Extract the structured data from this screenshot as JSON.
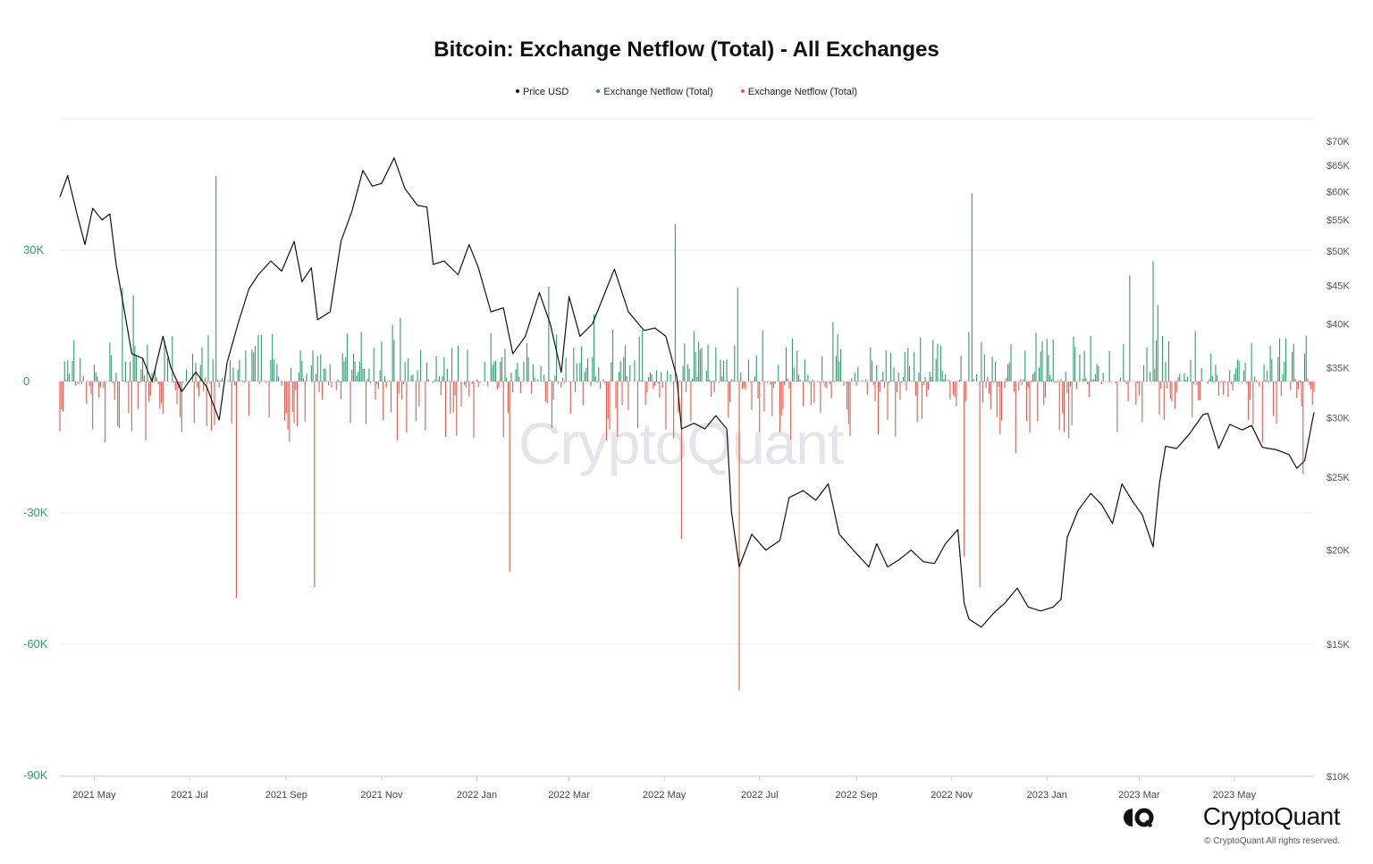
{
  "chart_data": {
    "type": "bar+line",
    "title": "Bitcoin: Exchange Netflow (Total) - All Exchanges",
    "legend": [
      {
        "label": "Price USD",
        "color": "#111111"
      },
      {
        "label": "Exchange Netflow (Total)",
        "color": "#2e9d6b"
      },
      {
        "label": "Exchange Netflow (Total)",
        "color": "#e8574a"
      }
    ],
    "x_ticks": [
      "2021 May",
      "2021 Jul",
      "2021 Sep",
      "2021 Nov",
      "2022 Jan",
      "2022 Mar",
      "2022 May",
      "2022 Jul",
      "2022 Sep",
      "2022 Nov",
      "2023 Jan",
      "2023 Mar",
      "2023 May"
    ],
    "x_range": [
      "2021-04-09",
      "2023-06-21"
    ],
    "left_axis": {
      "ticks": [
        "30K",
        "0",
        "-30K",
        "-60K",
        "-90K"
      ],
      "values": [
        30000,
        0,
        -30000,
        -60000,
        -90000
      ],
      "range": [
        -90000,
        60000
      ]
    },
    "right_axis": {
      "scale": "log",
      "ticks": [
        "$70K",
        "$65K",
        "$60K",
        "$55K",
        "$50K",
        "$45K",
        "$40K",
        "$35K",
        "$30K",
        "$25K",
        "$20K",
        "$15K",
        "$10K"
      ],
      "values": [
        70000,
        65000,
        60000,
        55000,
        50000,
        45000,
        40000,
        35000,
        30000,
        25000,
        20000,
        15000,
        10000
      ],
      "range": [
        10000,
        70000
      ]
    },
    "grid": true,
    "legend_position": "top-center",
    "price_series": {
      "name": "Price USD",
      "dates": [
        "2021-04-09",
        "2021-04-14",
        "2021-04-20",
        "2021-04-25",
        "2021-04-30",
        "2021-05-06",
        "2021-05-11",
        "2021-05-15",
        "2021-05-20",
        "2021-05-25",
        "2021-06-01",
        "2021-06-07",
        "2021-06-14",
        "2021-06-19",
        "2021-06-26",
        "2021-07-05",
        "2021-07-12",
        "2021-07-20",
        "2021-07-25",
        "2021-08-01",
        "2021-08-08",
        "2021-08-14",
        "2021-08-22",
        "2021-08-29",
        "2021-09-06",
        "2021-09-11",
        "2021-09-17",
        "2021-09-21",
        "2021-09-29",
        "2021-10-06",
        "2021-10-13",
        "2021-10-20",
        "2021-10-26",
        "2021-11-01",
        "2021-11-09",
        "2021-11-16",
        "2021-11-24",
        "2021-11-30",
        "2021-12-04",
        "2021-12-11",
        "2021-12-20",
        "2021-12-27",
        "2022-01-02",
        "2022-01-10",
        "2022-01-18",
        "2022-01-24",
        "2022-02-01",
        "2022-02-10",
        "2022-02-17",
        "2022-02-24",
        "2022-03-01",
        "2022-03-08",
        "2022-03-16",
        "2022-03-24",
        "2022-03-30",
        "2022-04-08",
        "2022-04-18",
        "2022-04-25",
        "2022-05-02",
        "2022-05-09",
        "2022-05-12",
        "2022-05-20",
        "2022-05-27",
        "2022-06-03",
        "2022-06-10",
        "2022-06-13",
        "2022-06-18",
        "2022-06-26",
        "2022-07-05",
        "2022-07-14",
        "2022-07-20",
        "2022-07-29",
        "2022-08-06",
        "2022-08-14",
        "2022-08-21",
        "2022-08-30",
        "2022-09-09",
        "2022-09-14",
        "2022-09-21",
        "2022-09-28",
        "2022-10-06",
        "2022-10-14",
        "2022-10-21",
        "2022-10-28",
        "2022-11-05",
        "2022-11-09",
        "2022-11-12",
        "2022-11-20",
        "2022-11-28",
        "2022-12-05",
        "2022-12-13",
        "2022-12-20",
        "2022-12-28",
        "2023-01-05",
        "2023-01-10",
        "2023-01-14",
        "2023-01-21",
        "2023-01-29",
        "2023-02-05",
        "2023-02-12",
        "2023-02-18",
        "2023-02-25",
        "2023-03-03",
        "2023-03-10",
        "2023-03-14",
        "2023-03-18",
        "2023-03-25",
        "2023-04-02",
        "2023-04-11",
        "2023-04-14",
        "2023-04-21",
        "2023-04-28",
        "2023-05-06",
        "2023-05-12",
        "2023-05-19",
        "2023-05-28",
        "2023-06-05",
        "2023-06-10",
        "2023-06-15",
        "2023-06-21"
      ],
      "values": [
        59000,
        63000,
        56000,
        51000,
        57000,
        55000,
        56000,
        48000,
        42000,
        36500,
        36000,
        33500,
        38500,
        35000,
        32500,
        34500,
        33000,
        29800,
        35500,
        40000,
        44500,
        46500,
        48500,
        47000,
        51500,
        45500,
        47500,
        40500,
        41500,
        51500,
        56500,
        64000,
        61000,
        61500,
        66500,
        60500,
        57500,
        57200,
        48000,
        48500,
        46500,
        51000,
        47500,
        41500,
        42000,
        36500,
        38500,
        44000,
        40000,
        34500,
        43500,
        38500,
        40000,
        44000,
        47300,
        41500,
        39200,
        39500,
        38500,
        34000,
        29000,
        29500,
        29000,
        30200,
        29000,
        22500,
        19000,
        21000,
        20000,
        20600,
        23500,
        24000,
        23300,
        24500,
        21000,
        20000,
        19000,
        20400,
        19000,
        19400,
        20000,
        19300,
        19200,
        20400,
        21300,
        17000,
        16200,
        15800,
        16500,
        17000,
        17800,
        16800,
        16600,
        16800,
        17200,
        20800,
        22600,
        23800,
        23000,
        21700,
        24500,
        23200,
        22300,
        20200,
        24500,
        27500,
        27300,
        28500,
        30300,
        30400,
        27300,
        29400,
        28900,
        29300,
        27400,
        27200,
        26800,
        25700,
        26300,
        30500
      ]
    },
    "netflow_series": {
      "name": "Exchange Netflow (Total)",
      "daily": true,
      "inflow_color": "#2e9d6b",
      "outflow_color": "#e8574a",
      "notable_spikes": [
        {
          "date": "2021-07-18",
          "value": 47000
        },
        {
          "date": "2021-07-31",
          "value": -49500
        },
        {
          "date": "2021-09-19",
          "value": -47000
        },
        {
          "date": "2022-01-22",
          "value": -43500
        },
        {
          "date": "2022-05-08",
          "value": 36000
        },
        {
          "date": "2022-05-12",
          "value": -36000
        },
        {
          "date": "2022-06-18",
          "value": -70500
        },
        {
          "date": "2022-11-09",
          "value": -40000
        },
        {
          "date": "2022-11-14",
          "value": 43000
        },
        {
          "date": "2022-11-19",
          "value": -47000
        },
        {
          "date": "2023-03-10",
          "value": 27500
        },
        {
          "date": "2023-03-13",
          "value": 17500
        }
      ]
    }
  },
  "branding": {
    "logo_text": "CryptoQuant",
    "copyright": "© CryptoQuant All rights reserved.",
    "watermark": "CryptoQuant"
  }
}
